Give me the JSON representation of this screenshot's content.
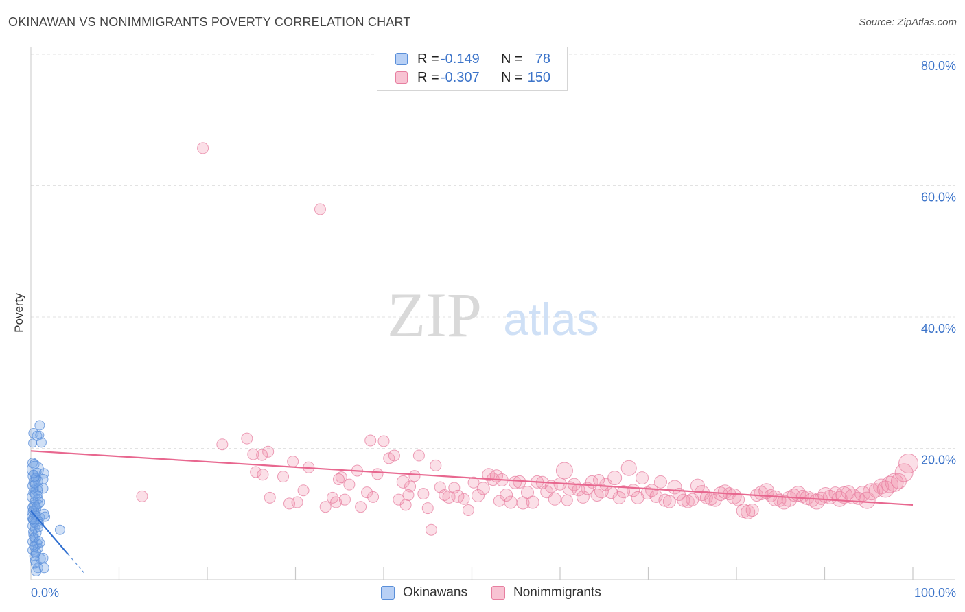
{
  "title": "OKINAWAN VS NONIMMIGRANTS POVERTY CORRELATION CHART",
  "source": "Source: ZipAtlas.com",
  "watermark": {
    "zip": "ZIP",
    "atlas": "atlas"
  },
  "legend": {
    "rows": [
      {
        "r_label": "R =",
        "r_value": "-0.149",
        "n_label": "N =",
        "n_value": "78",
        "fill": "#b8d0f5",
        "stroke": "#5a8fd9"
      },
      {
        "r_label": "R =",
        "r_value": "-0.307",
        "n_label": "N =",
        "n_value": "150",
        "fill": "#f8c3d3",
        "stroke": "#e77fa0"
      }
    ]
  },
  "bottom_legend": [
    {
      "label": "Okinawans",
      "fill": "#b8d0f5",
      "stroke": "#5a8fd9"
    },
    {
      "label": "Nonimmigrants",
      "fill": "#f8c3d3",
      "stroke": "#e77fa0"
    }
  ],
  "colors": {
    "blue_point": "#5a8fd9",
    "blue_fill": "rgba(120,165,230,0.35)",
    "pink_point": "#e77fa0",
    "pink_fill": "rgba(240,140,170,0.28)",
    "blue_line": "#2f6fd0",
    "pink_line": "#e8678f",
    "tick_text": "#3b73c9",
    "grid": "#e2e2e2"
  },
  "chart_data": {
    "type": "scatter",
    "title": "OKINAWAN VS NONIMMIGRANTS POVERTY CORRELATION CHART",
    "xlabel": "",
    "ylabel": "Poverty",
    "xlim": [
      0,
      100
    ],
    "ylim": [
      0,
      80
    ],
    "x_tick_labels": [
      "0.0%",
      "100.0%"
    ],
    "y_ticks": [
      20,
      40,
      60,
      80
    ],
    "y_tick_labels": [
      "20.0%",
      "40.0%",
      "60.0%",
      "80.0%"
    ],
    "grid": true,
    "legend_position": "top-center",
    "series": [
      {
        "name": "Okinawans",
        "r": -0.149,
        "n": 78,
        "trend": {
          "x0": 0,
          "y0": 10.5,
          "x1": 4.2,
          "y1": 3.9,
          "dash_to_x": 6.2,
          "dash_to_y": 0.8
        },
        "points": [
          [
            0.3,
            22.3,
            7
          ],
          [
            0.7,
            21.9,
            7
          ],
          [
            1.0,
            22.0,
            6
          ],
          [
            0.2,
            20.8,
            6
          ],
          [
            1.0,
            23.5,
            7
          ],
          [
            1.2,
            20.9,
            7
          ],
          [
            0.2,
            17.8,
            7
          ],
          [
            0.4,
            17.6,
            7
          ],
          [
            0.5,
            16.8,
            12
          ],
          [
            0.3,
            15.8,
            8
          ],
          [
            1.5,
            16.2,
            7
          ],
          [
            0.6,
            15.4,
            7
          ],
          [
            1.4,
            15.3,
            7
          ],
          [
            0.8,
            15.0,
            7
          ],
          [
            0.4,
            14.8,
            8
          ],
          [
            0.2,
            14.3,
            7
          ],
          [
            1.4,
            13.9,
            7
          ],
          [
            0.7,
            13.6,
            8
          ],
          [
            0.3,
            13.3,
            7
          ],
          [
            0.5,
            13.0,
            7
          ],
          [
            0.2,
            12.6,
            8
          ],
          [
            0.8,
            12.3,
            7
          ],
          [
            1.0,
            11.8,
            7
          ],
          [
            0.4,
            11.3,
            8
          ],
          [
            0.2,
            11.0,
            7
          ],
          [
            0.6,
            10.8,
            7
          ],
          [
            0.3,
            10.3,
            8
          ],
          [
            1.5,
            10.0,
            7
          ],
          [
            0.5,
            9.9,
            7
          ],
          [
            0.2,
            9.6,
            8
          ],
          [
            1.0,
            9.5,
            7
          ],
          [
            1.6,
            9.6,
            7
          ],
          [
            0.3,
            9.2,
            8
          ],
          [
            0.7,
            9.0,
            8
          ],
          [
            0.4,
            8.8,
            7
          ],
          [
            0.9,
            8.5,
            7
          ],
          [
            0.2,
            8.2,
            7
          ],
          [
            0.5,
            7.8,
            7
          ],
          [
            3.3,
            7.6,
            7
          ],
          [
            0.3,
            6.9,
            7
          ],
          [
            0.4,
            6.3,
            7
          ],
          [
            0.2,
            5.8,
            7
          ],
          [
            0.7,
            5.5,
            7
          ],
          [
            0.4,
            5.0,
            7
          ],
          [
            0.8,
            4.8,
            7
          ],
          [
            0.2,
            4.5,
            7
          ],
          [
            0.6,
            4.2,
            7
          ],
          [
            0.4,
            3.6,
            7
          ],
          [
            1.1,
            3.2,
            7
          ],
          [
            0.5,
            2.9,
            7
          ],
          [
            1.4,
            3.3,
            7
          ],
          [
            0.8,
            1.8,
            7
          ],
          [
            1.5,
            1.8,
            7
          ],
          [
            0.6,
            1.3,
            7
          ],
          [
            0.3,
            6.5,
            6
          ],
          [
            0.9,
            6.0,
            6
          ],
          [
            0.6,
            10.2,
            6
          ],
          [
            0.4,
            12.0,
            6
          ],
          [
            0.9,
            14.0,
            6
          ],
          [
            0.5,
            15.6,
            6
          ],
          [
            0.2,
            7.3,
            6
          ],
          [
            0.7,
            7.1,
            6
          ],
          [
            0.3,
            5.2,
            6
          ],
          [
            0.5,
            2.4,
            6
          ],
          [
            0.9,
            11.5,
            6
          ],
          [
            0.3,
            13.8,
            6
          ],
          [
            0.6,
            9.8,
            6
          ],
          [
            0.4,
            8.6,
            6
          ],
          [
            0.2,
            10.6,
            6
          ],
          [
            0.8,
            12.9,
            6
          ],
          [
            1.1,
            5.6,
            6
          ],
          [
            0.5,
            3.9,
            6
          ],
          [
            0.3,
            16.1,
            6
          ],
          [
            0.7,
            16.4,
            6
          ],
          [
            0.4,
            14.6,
            6
          ],
          [
            0.6,
            11.2,
            6
          ],
          [
            0.2,
            9.1,
            6
          ],
          [
            0.9,
            7.9,
            6
          ]
        ]
      },
      {
        "name": "Nonimmigrants",
        "r": -0.307,
        "n": 150,
        "trend": {
          "x0": 0,
          "y0": 19.6,
          "x1": 100,
          "y1": 11.4
        },
        "points": [
          [
            19.5,
            65.7,
            8
          ],
          [
            32.8,
            56.4,
            8
          ],
          [
            12.6,
            12.7,
            8
          ],
          [
            21.7,
            20.6,
            8
          ],
          [
            24.5,
            21.5,
            8
          ],
          [
            25.2,
            19.1,
            8
          ],
          [
            26.2,
            19.0,
            8
          ],
          [
            26.9,
            19.5,
            8
          ],
          [
            25.5,
            16.4,
            8
          ],
          [
            26.3,
            16.0,
            8
          ],
          [
            27.1,
            12.5,
            8
          ],
          [
            28.6,
            15.7,
            8
          ],
          [
            29.3,
            11.6,
            8
          ],
          [
            29.7,
            18.0,
            8
          ],
          [
            30.2,
            11.8,
            8
          ],
          [
            30.9,
            13.6,
            8
          ],
          [
            31.5,
            17.1,
            8
          ],
          [
            33.4,
            11.1,
            8
          ],
          [
            34.2,
            12.5,
            8
          ],
          [
            34.6,
            11.8,
            8
          ],
          [
            35.2,
            15.6,
            8
          ],
          [
            35.6,
            12.2,
            8
          ],
          [
            36.1,
            14.5,
            8
          ],
          [
            37.0,
            16.6,
            8
          ],
          [
            37.4,
            11.1,
            8
          ],
          [
            38.1,
            13.3,
            8
          ],
          [
            38.8,
            12.6,
            8
          ],
          [
            39.3,
            16.1,
            8
          ],
          [
            40.0,
            21.1,
            8
          ],
          [
            40.6,
            18.5,
            8
          ],
          [
            41.2,
            18.9,
            8
          ],
          [
            41.7,
            12.2,
            8
          ],
          [
            42.2,
            14.9,
            9
          ],
          [
            42.5,
            11.4,
            8
          ],
          [
            43.0,
            14.2,
            8
          ],
          [
            43.5,
            15.8,
            8
          ],
          [
            44.0,
            18.9,
            8
          ],
          [
            44.5,
            13.1,
            8
          ],
          [
            45.0,
            10.9,
            8
          ],
          [
            45.4,
            7.6,
            8
          ],
          [
            45.9,
            17.4,
            8
          ],
          [
            46.4,
            14.1,
            8
          ],
          [
            46.9,
            12.9,
            8
          ],
          [
            47.4,
            12.6,
            9
          ],
          [
            48.0,
            14.0,
            8
          ],
          [
            48.4,
            12.7,
            9
          ],
          [
            49.1,
            12.3,
            8
          ],
          [
            49.6,
            10.6,
            8
          ],
          [
            50.2,
            14.8,
            8
          ],
          [
            50.7,
            12.8,
            9
          ],
          [
            51.3,
            13.9,
            9
          ],
          [
            51.9,
            16.0,
            9
          ],
          [
            52.4,
            15.3,
            9
          ],
          [
            52.8,
            15.8,
            9
          ],
          [
            53.4,
            15.2,
            9
          ],
          [
            53.9,
            12.9,
            9
          ],
          [
            54.4,
            11.8,
            9
          ],
          [
            54.9,
            14.8,
            9
          ],
          [
            55.4,
            14.9,
            9
          ],
          [
            55.8,
            11.7,
            9
          ],
          [
            56.3,
            13.3,
            9
          ],
          [
            56.9,
            11.8,
            9
          ],
          [
            57.4,
            14.9,
            9
          ],
          [
            58.0,
            14.8,
            9
          ],
          [
            58.5,
            13.4,
            9
          ],
          [
            59.0,
            14.2,
            9
          ],
          [
            59.4,
            12.3,
            9
          ],
          [
            60.0,
            14.6,
            9
          ],
          [
            60.5,
            16.6,
            12
          ],
          [
            61.1,
            13.9,
            10
          ],
          [
            61.6,
            14.5,
            9
          ],
          [
            62.1,
            13.7,
            9
          ],
          [
            62.6,
            12.6,
            9
          ],
          [
            63.1,
            13.9,
            9
          ],
          [
            63.6,
            14.9,
            9
          ],
          [
            64.2,
            12.9,
            9
          ],
          [
            64.7,
            13.5,
            10
          ],
          [
            65.2,
            14.5,
            9
          ],
          [
            65.8,
            13.3,
            9
          ],
          [
            66.2,
            15.5,
            10
          ],
          [
            66.7,
            12.5,
            9
          ],
          [
            67.2,
            13.4,
            9
          ],
          [
            67.8,
            17.0,
            11
          ],
          [
            68.3,
            13.6,
            9
          ],
          [
            68.8,
            12.5,
            9
          ],
          [
            69.3,
            15.5,
            9
          ],
          [
            69.9,
            13.2,
            9
          ],
          [
            70.4,
            13.6,
            9
          ],
          [
            70.9,
            12.7,
            9
          ],
          [
            71.4,
            14.9,
            9
          ],
          [
            71.9,
            12.1,
            9
          ],
          [
            72.4,
            11.9,
            9
          ],
          [
            73.0,
            14.1,
            10
          ],
          [
            73.5,
            13.0,
            9
          ],
          [
            74.0,
            12.1,
            9
          ],
          [
            74.5,
            11.9,
            9
          ],
          [
            75.0,
            12.2,
            9
          ],
          [
            75.6,
            14.3,
            10
          ],
          [
            76.1,
            13.2,
            11
          ],
          [
            76.6,
            12.5,
            9
          ],
          [
            77.1,
            12.3,
            9
          ],
          [
            77.6,
            12.1,
            9
          ],
          [
            78.2,
            13.1,
            10
          ],
          [
            78.7,
            13.4,
            10
          ],
          [
            79.2,
            13.1,
            9
          ],
          [
            79.7,
            12.7,
            11
          ],
          [
            80.2,
            12.2,
            9
          ],
          [
            80.8,
            10.5,
            10
          ],
          [
            81.3,
            10.3,
            10
          ],
          [
            81.8,
            10.6,
            9
          ],
          [
            82.3,
            12.9,
            9
          ],
          [
            82.8,
            13.2,
            10
          ],
          [
            83.4,
            13.5,
            11
          ],
          [
            83.9,
            12.8,
            9
          ],
          [
            84.4,
            12.4,
            11
          ],
          [
            84.9,
            12.1,
            9
          ],
          [
            85.4,
            11.8,
            10
          ],
          [
            86.0,
            12.3,
            11
          ],
          [
            86.5,
            12.9,
            9
          ],
          [
            87.0,
            13.1,
            11
          ],
          [
            87.5,
            12.7,
            9
          ],
          [
            88.0,
            12.5,
            10
          ],
          [
            88.6,
            12.2,
            10
          ],
          [
            89.1,
            11.9,
            11
          ],
          [
            89.6,
            12.4,
            9
          ],
          [
            90.1,
            12.9,
            11
          ],
          [
            90.6,
            12.6,
            10
          ],
          [
            91.2,
            13.2,
            9
          ],
          [
            91.7,
            12.3,
            11
          ],
          [
            92.2,
            12.9,
            12
          ],
          [
            92.7,
            13.3,
            10
          ],
          [
            93.2,
            12.7,
            11
          ],
          [
            93.8,
            12.4,
            9
          ],
          [
            94.3,
            13.1,
            11
          ],
          [
            94.8,
            12.1,
            12
          ],
          [
            95.3,
            13.4,
            12
          ],
          [
            95.8,
            13.6,
            10
          ],
          [
            96.4,
            14.2,
            11
          ],
          [
            96.9,
            13.8,
            12
          ],
          [
            97.4,
            14.5,
            12
          ],
          [
            97.9,
            14.8,
            13
          ],
          [
            98.4,
            15.0,
            11
          ],
          [
            99.0,
            16.3,
            13
          ],
          [
            99.5,
            17.7,
            14
          ],
          [
            38.5,
            21.2,
            8
          ],
          [
            34.9,
            15.3,
            8
          ],
          [
            60.8,
            12.1,
            8
          ],
          [
            64.4,
            15.2,
            8
          ],
          [
            42.8,
            12.9,
            8
          ],
          [
            53.1,
            12.0,
            8
          ]
        ]
      }
    ]
  }
}
